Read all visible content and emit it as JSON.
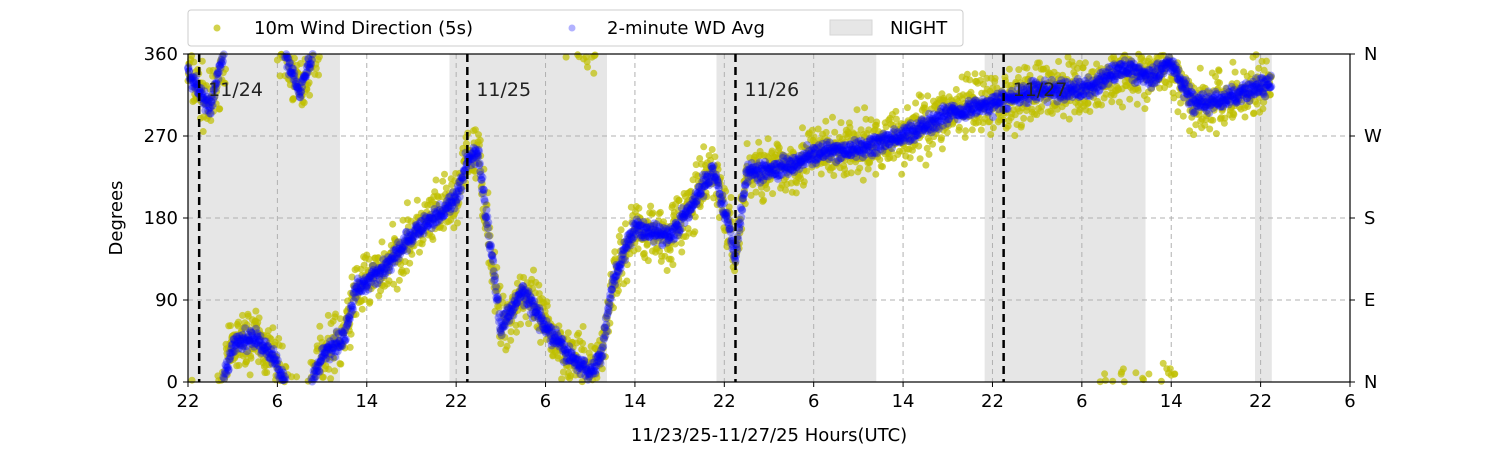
{
  "chart_data": {
    "type": "scatter",
    "xlabel": "11/23/25-11/27/25  Hours(UTC)",
    "ylabel": "Degrees",
    "xlim_hours": [
      0,
      104
    ],
    "ylim": [
      0,
      360
    ],
    "x_ticks": [
      "22",
      "6",
      "14",
      "22",
      "6",
      "14",
      "22",
      "6",
      "14",
      "22",
      "6",
      "14",
      "22",
      "6"
    ],
    "y_ticks": [
      "0",
      "90",
      "180",
      "270",
      "360"
    ],
    "y2_ticks": [
      "N",
      "E",
      "S",
      "W",
      "N"
    ],
    "grid": true,
    "legend": {
      "placement": "top-center",
      "entries": [
        "10m Wind Direction (5s)",
        "2-minute WD Avg",
        "NIGHT"
      ]
    },
    "day_markers": [
      {
        "hour": 1,
        "label": "11/24"
      },
      {
        "hour": 25,
        "label": "11/25"
      },
      {
        "hour": 49,
        "label": "11/26"
      },
      {
        "hour": 73,
        "label": "11/27"
      }
    ],
    "night_periods_hours": [
      [
        0,
        13.6
      ],
      [
        23.4,
        37.5
      ],
      [
        47.3,
        61.6
      ],
      [
        71.3,
        85.7
      ],
      [
        95.5,
        97
      ]
    ],
    "avg_trend_points": [
      [
        0,
        -20
      ],
      [
        2,
        -60
      ],
      [
        4,
        40
      ],
      [
        6,
        50
      ],
      [
        8,
        20
      ],
      [
        10,
        -40
      ],
      [
        12,
        30
      ],
      [
        14,
        50
      ],
      [
        15,
        100
      ],
      [
        18,
        130
      ],
      [
        20,
        160
      ],
      [
        22,
        180
      ],
      [
        24,
        200
      ],
      [
        25,
        245
      ],
      [
        26,
        250
      ],
      [
        28,
        60
      ],
      [
        30,
        100
      ],
      [
        32,
        60
      ],
      [
        34,
        30
      ],
      [
        36,
        10
      ],
      [
        37,
        30
      ],
      [
        38,
        110
      ],
      [
        40,
        170
      ],
      [
        43,
        160
      ],
      [
        45,
        190
      ],
      [
        47,
        235
      ],
      [
        48,
        190
      ],
      [
        49,
        140
      ],
      [
        50,
        230
      ],
      [
        53,
        235
      ],
      [
        56,
        250
      ],
      [
        60,
        255
      ],
      [
        64,
        270
      ],
      [
        68,
        295
      ],
      [
        72,
        305
      ],
      [
        76,
        320
      ],
      [
        80,
        320
      ],
      [
        84,
        345
      ],
      [
        86,
        335
      ],
      [
        88,
        350
      ],
      [
        90,
        305
      ],
      [
        93,
        310
      ],
      [
        96,
        325
      ]
    ],
    "series": [
      {
        "name": "10m Wind Direction (5s)",
        "color": "#bfbf00",
        "noise_deg": 25
      },
      {
        "name": "2-minute WD Avg",
        "color": "#0000ff",
        "noise_deg": 8
      }
    ],
    "night_color": "#e6e6e6"
  }
}
